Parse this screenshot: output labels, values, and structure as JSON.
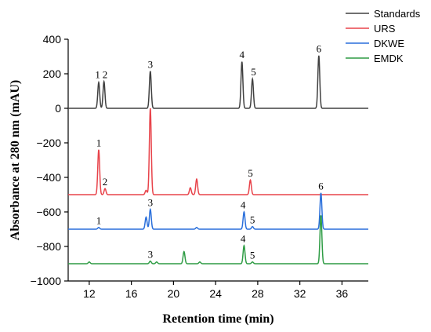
{
  "chart_data": {
    "type": "line",
    "title": "",
    "xlabel": "Retention time (min)",
    "ylabel": "Absorbance at  280 nm (mAU)",
    "xlim": [
      10,
      38.5
    ],
    "ylim": [
      -1000,
      400
    ],
    "xticks": [
      12,
      16,
      20,
      24,
      28,
      32,
      36
    ],
    "yticks": [
      -1000,
      -800,
      -600,
      -400,
      -200,
      0,
      200,
      400
    ],
    "legend_position": "top-right",
    "series": [
      {
        "name": "Standards",
        "color": "#404040",
        "baseline": 0,
        "peaks": [
          {
            "x": 12.9,
            "y": 150
          },
          {
            "x": 13.4,
            "y": 155
          },
          {
            "x": 17.8,
            "y": 215
          },
          {
            "x": 26.5,
            "y": 270
          },
          {
            "x": 27.5,
            "y": 170
          },
          {
            "x": 33.8,
            "y": 305
          }
        ]
      },
      {
        "name": "URS",
        "color": "#e8434a",
        "baseline": -500,
        "peaks": [
          {
            "x": 12.9,
            "y": -240
          },
          {
            "x": 13.5,
            "y": -465
          },
          {
            "x": 17.4,
            "y": -475
          },
          {
            "x": 17.8,
            "y": 0
          },
          {
            "x": 21.6,
            "y": -460
          },
          {
            "x": 22.2,
            "y": -410
          },
          {
            "x": 27.3,
            "y": -415
          }
        ]
      },
      {
        "name": "DKWE",
        "color": "#2a6fdb",
        "baseline": -700,
        "peaks": [
          {
            "x": 12.9,
            "y": -690
          },
          {
            "x": 17.4,
            "y": -630
          },
          {
            "x": 17.8,
            "y": -585
          },
          {
            "x": 22.2,
            "y": -690
          },
          {
            "x": 26.7,
            "y": -600
          },
          {
            "x": 27.5,
            "y": -685
          },
          {
            "x": 34.0,
            "y": -490
          }
        ]
      },
      {
        "name": "EMDK",
        "color": "#2e9c44",
        "baseline": -900,
        "peaks": [
          {
            "x": 12.0,
            "y": -890
          },
          {
            "x": 17.8,
            "y": -885
          },
          {
            "x": 18.4,
            "y": -890
          },
          {
            "x": 21.0,
            "y": -830
          },
          {
            "x": 22.5,
            "y": -890
          },
          {
            "x": 26.7,
            "y": -795
          },
          {
            "x": 27.5,
            "y": -890
          },
          {
            "x": 34.0,
            "y": -620
          }
        ]
      }
    ],
    "annotations": [
      {
        "text": "1",
        "x": 12.8,
        "y": 175
      },
      {
        "text": "2",
        "x": 13.5,
        "y": 175
      },
      {
        "text": "3",
        "x": 17.8,
        "y": 235
      },
      {
        "text": "4",
        "x": 26.5,
        "y": 290
      },
      {
        "text": "5",
        "x": 27.6,
        "y": 190
      },
      {
        "text": "6",
        "x": 33.8,
        "y": 325
      },
      {
        "text": "1",
        "x": 12.9,
        "y": -220
      },
      {
        "text": "2",
        "x": 13.5,
        "y": -445
      },
      {
        "text": "5",
        "x": 27.3,
        "y": -395
      },
      {
        "text": "6",
        "x": 34.0,
        "y": -470
      },
      {
        "text": "1",
        "x": 12.9,
        "y": -670
      },
      {
        "text": "3",
        "x": 17.8,
        "y": -565
      },
      {
        "text": "4",
        "x": 26.6,
        "y": -580
      },
      {
        "text": "5",
        "x": 27.5,
        "y": -665
      },
      {
        "text": "3",
        "x": 17.8,
        "y": -865
      },
      {
        "text": "4",
        "x": 26.6,
        "y": -775
      },
      {
        "text": "5",
        "x": 27.5,
        "y": -870
      }
    ]
  }
}
